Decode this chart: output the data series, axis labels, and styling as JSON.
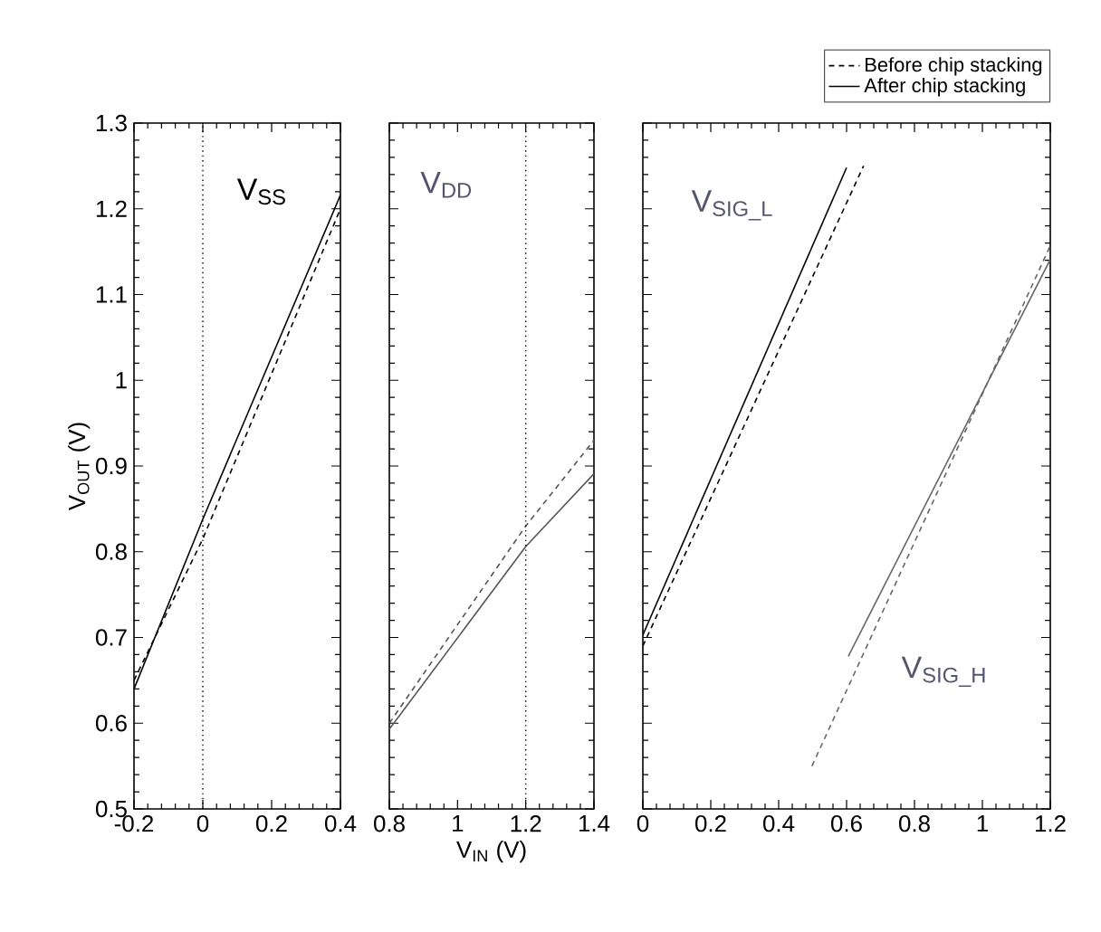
{
  "chart_data": [
    {
      "type": "line",
      "ylabel": "V$_{OUT}$ (V)",
      "xlim": [
        -0.2,
        0.4
      ],
      "xticks": [
        -0.2,
        0,
        0.2,
        0.4
      ],
      "ylim": [
        0.5,
        1.3
      ],
      "yticks": [
        0.5,
        0.6,
        0.7,
        0.8,
        0.9,
        1,
        1.1,
        1.2,
        1.3
      ],
      "series": [
        {
          "color": "#000000",
          "line_style": "dashed",
          "x": [
            -0.2,
            0,
            0.4
          ],
          "values": [
            0.65,
            0.815,
            1.2
          ]
        },
        {
          "color": "#000000",
          "line_style": "solid",
          "x": [
            -0.2,
            0,
            0.4
          ],
          "values": [
            0.64,
            0.838,
            1.216
          ]
        }
      ],
      "ref_lines": [
        {
          "axis": "x",
          "value": 0,
          "line_style": "dotted"
        }
      ],
      "annotations": [
        "V$_{SS}$"
      ]
    },
    {
      "type": "line",
      "xlabel": "V$_{IN}$ (V)",
      "xlim": [
        0.8,
        1.4
      ],
      "xticks": [
        0.8,
        1,
        1.2,
        1.4
      ],
      "ylim": [
        0.5,
        1.3
      ],
      "yticks": [
        0.5,
        0.6,
        0.7,
        0.8,
        0.9,
        1,
        1.1,
        1.2,
        1.3
      ],
      "tick_labels": "x",
      "series": [
        {
          "color": "#555555",
          "line_style": "dashed",
          "x": [
            0.8,
            1.2,
            1.4
          ],
          "values": [
            0.6,
            0.83,
            0.93
          ]
        },
        {
          "color": "#555555",
          "line_style": "solid",
          "x": [
            0.8,
            1.2,
            1.4
          ],
          "values": [
            0.593,
            0.806,
            0.891
          ]
        }
      ],
      "ref_lines": [
        {
          "axis": "x",
          "value": 1.2,
          "line_style": "dotted"
        }
      ],
      "annotations": [
        "V$_{DD}$"
      ]
    },
    {
      "type": "line",
      "xlim": [
        0,
        1.2
      ],
      "xticks": [
        0,
        0.2,
        0.4,
        0.6,
        0.8,
        1,
        1.2
      ],
      "ylim": [
        0.5,
        1.3
      ],
      "yticks": [
        0.5,
        0.6,
        0.7,
        0.8,
        0.9,
        1,
        1.1,
        1.2,
        1.3
      ],
      "tick_labels": "x",
      "legend": "top right",
      "series": [
        {
          "name": "Before chip stacking",
          "color": "#000000",
          "line_style": "dashed",
          "x": [
            0,
            0.65
          ],
          "values": [
            0.69,
            1.25
          ]
        },
        {
          "name": "After chip stacking",
          "color": "#000000",
          "line_style": "solid",
          "x": [
            0,
            0.6
          ],
          "values": [
            0.703,
            1.248
          ]
        },
        {
          "color": "#666666",
          "line_style": "dashed",
          "x": [
            0.498,
            1.2
          ],
          "values": [
            0.55,
            1.157
          ]
        },
        {
          "color": "#666666",
          "line_style": "solid",
          "x": [
            0.605,
            1.2
          ],
          "values": [
            0.678,
            1.141
          ]
        }
      ],
      "annotations": [
        "V$_{SIG_L}$",
        "V$_{SIG_H}$"
      ]
    }
  ]
}
